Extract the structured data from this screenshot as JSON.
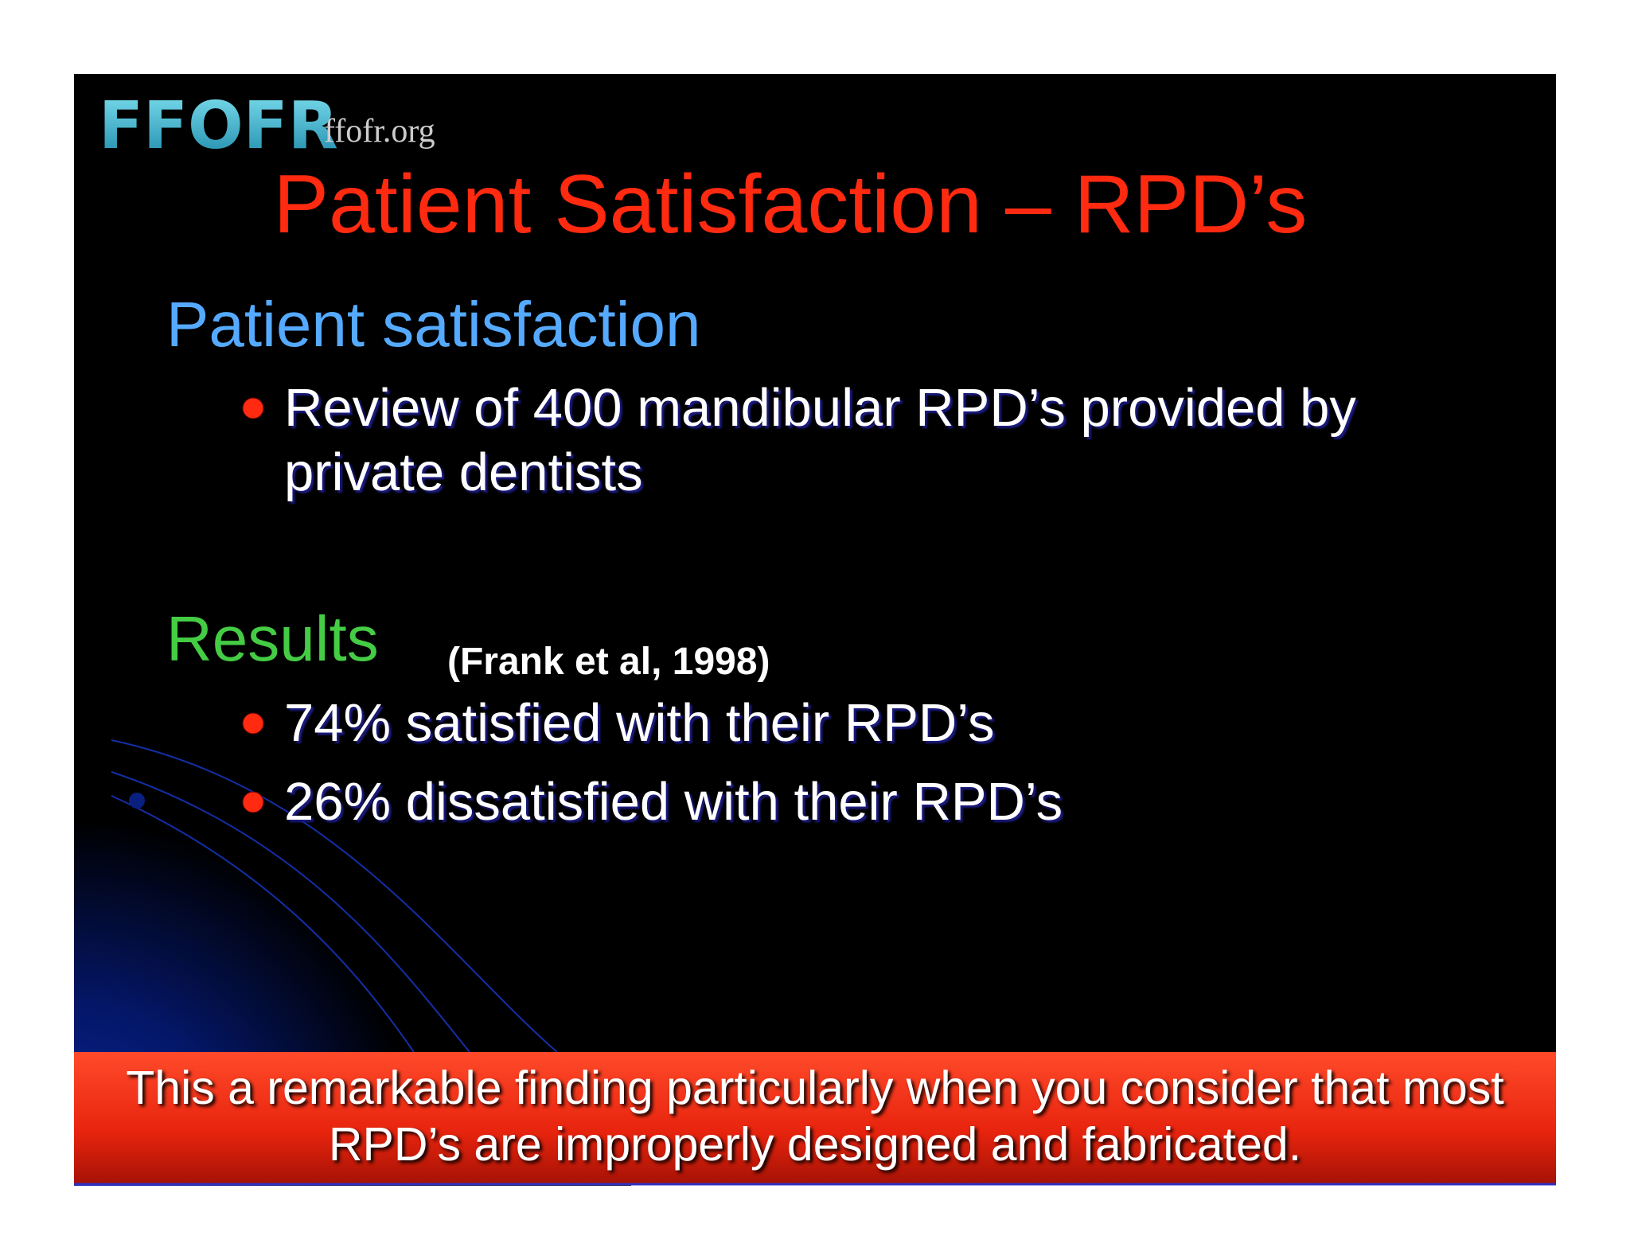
{
  "header": {
    "logo": "FFOFR",
    "url": "ffofr.org"
  },
  "title": "Patient Satisfaction – RPD’s",
  "sections": [
    {
      "heading": "Patient satisfaction",
      "bullets": [
        {
          "lines": [
            "Review of 400 mandibular RPD’s provided by",
            "private dentists"
          ]
        }
      ]
    },
    {
      "heading": "Results",
      "citation": "(Frank et al, 1998)",
      "bullets": [
        {
          "lines": [
            "74% satisfied with their RPD’s"
          ]
        },
        {
          "lines": [
            "26% dissatisfied with their RPD’s"
          ]
        }
      ]
    }
  ],
  "footer": {
    "lines": [
      "This a remarkable finding particularly when you consider that most",
      "RPD’s are improperly designed and fabricated."
    ]
  }
}
